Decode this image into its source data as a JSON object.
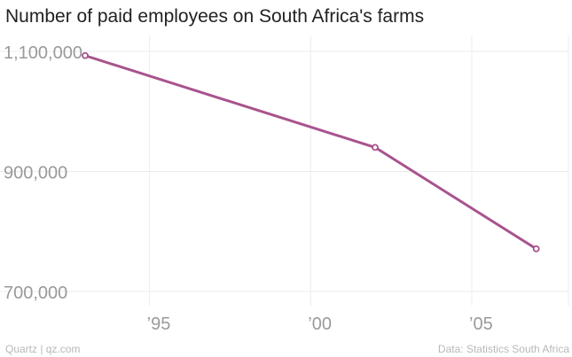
{
  "title": "Number of paid employees on South Africa's farms",
  "footer": {
    "left": "Quartz | qz.com",
    "right": "Data: Statistics South Africa"
  },
  "colors": {
    "line": "#a8538d",
    "grid": "#ececec",
    "tick_text": "#9a9a9a"
  },
  "chart_data": {
    "type": "line",
    "title": "Number of paid employees on South Africa's farms",
    "xlabel": "",
    "ylabel": "",
    "x_ticks": [
      {
        "value": 1995,
        "label": "’95"
      },
      {
        "value": 2000,
        "label": "’00"
      },
      {
        "value": 2005,
        "label": "’05"
      }
    ],
    "y_ticks": [
      {
        "value": 1100000,
        "label": "1,100,000"
      },
      {
        "value": 900000,
        "label": "900,000"
      },
      {
        "value": 700000,
        "label": "700,000"
      }
    ],
    "xlim": [
      1993,
      2008
    ],
    "ylim": [
      700000,
      1100000
    ],
    "grid": true,
    "series": [
      {
        "x": [
          1993,
          2002,
          2007
        ],
        "y": [
          1093000,
          940000,
          771000
        ]
      }
    ]
  }
}
